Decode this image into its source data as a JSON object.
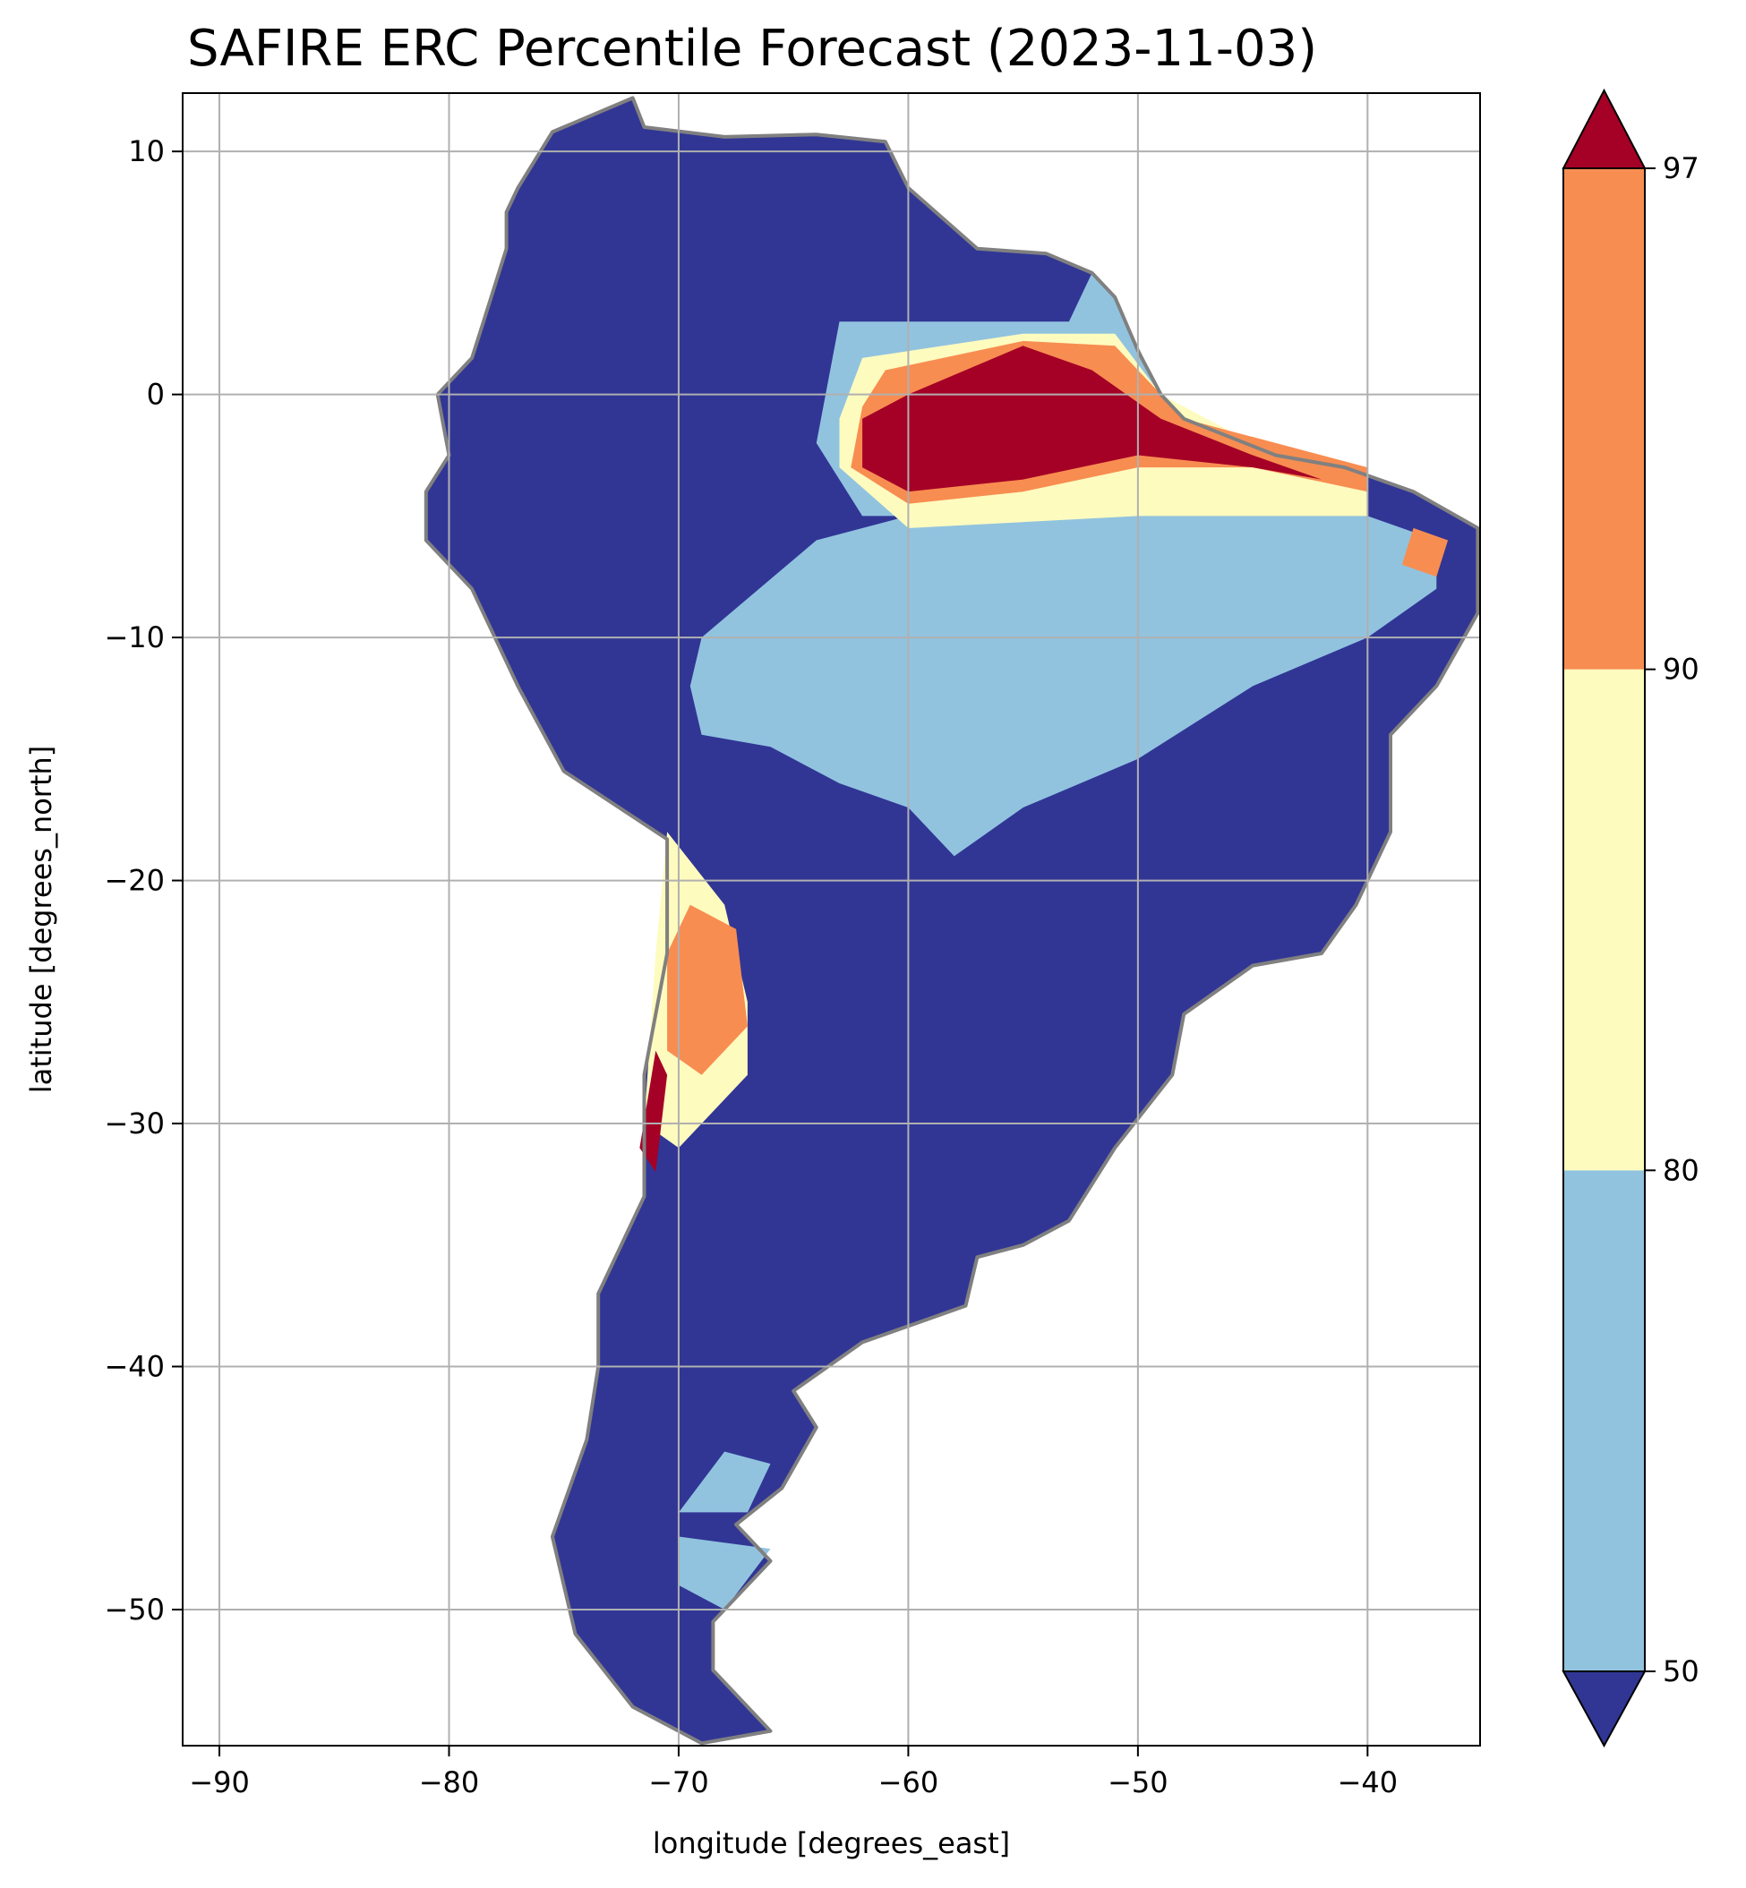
{
  "chart_data": {
    "type": "heatmap",
    "title": "SAFIRE ERC Percentile Forecast (2023-11-03)",
    "xlabel": "longitude [degrees_east]",
    "ylabel": "latitude [degrees_north]",
    "xlim": [
      -91.6,
      -35.1
    ],
    "ylim": [
      -55.6,
      12.4
    ],
    "xticks": [
      -90,
      -80,
      -70,
      -60,
      -50,
      -40
    ],
    "xtick_labels": [
      "−90",
      "−80",
      "−70",
      "−60",
      "−50",
      "−40"
    ],
    "yticks": [
      10,
      0,
      -10,
      -20,
      -30,
      -40,
      -50
    ],
    "ytick_labels": [
      "10",
      "0",
      "−10",
      "−20",
      "−30",
      "−40",
      "−50"
    ],
    "grid": true,
    "coastline_color": "#808080",
    "colorbar": {
      "position": "right",
      "extend": "both",
      "boundaries": [
        50,
        80,
        90,
        97
      ],
      "tick_labels": [
        "50",
        "80",
        "90",
        "97"
      ],
      "colors": {
        "below_50": "#313695",
        "50-80": "#91c3df",
        "80-90": "#fefbbf",
        "90-97": "#f88d51",
        "above_97": "#a50026"
      }
    },
    "land_outline": [
      [
        -77,
        8.5
      ],
      [
        -75.5,
        10.8
      ],
      [
        -72,
        12.2
      ],
      [
        -71.5,
        11
      ],
      [
        -68,
        10.6
      ],
      [
        -64,
        10.7
      ],
      [
        -61,
        10.4
      ],
      [
        -60,
        8.5
      ],
      [
        -57,
        6
      ],
      [
        -54,
        5.8
      ],
      [
        -52,
        5
      ],
      [
        -51,
        4
      ],
      [
        -50,
        1.8
      ],
      [
        -49,
        0
      ],
      [
        -48,
        -1
      ],
      [
        -44,
        -2.5
      ],
      [
        -41,
        -3
      ],
      [
        -38,
        -4
      ],
      [
        -35.2,
        -5.5
      ],
      [
        -35.2,
        -9
      ],
      [
        -37,
        -12
      ],
      [
        -39,
        -14
      ],
      [
        -39,
        -18
      ],
      [
        -40.5,
        -21
      ],
      [
        -42,
        -23
      ],
      [
        -45,
        -23.5
      ],
      [
        -48,
        -25.5
      ],
      [
        -48.5,
        -28
      ],
      [
        -51,
        -31
      ],
      [
        -53,
        -34
      ],
      [
        -55,
        -35
      ],
      [
        -57,
        -35.5
      ],
      [
        -57.5,
        -37.5
      ],
      [
        -62,
        -39
      ],
      [
        -65,
        -41
      ],
      [
        -64,
        -42.5
      ],
      [
        -65.5,
        -45
      ],
      [
        -67.5,
        -46.5
      ],
      [
        -66,
        -48
      ],
      [
        -68.5,
        -50.5
      ],
      [
        -68.5,
        -52.5
      ],
      [
        -66,
        -55
      ],
      [
        -69,
        -55.5
      ],
      [
        -72,
        -54
      ],
      [
        -74.5,
        -51
      ],
      [
        -75.5,
        -47
      ],
      [
        -74,
        -43
      ],
      [
        -73.5,
        -40
      ],
      [
        -73.5,
        -37
      ],
      [
        -71.5,
        -33
      ],
      [
        -71.5,
        -28
      ],
      [
        -70.5,
        -23
      ],
      [
        -70.5,
        -18.3
      ],
      [
        -75,
        -15.5
      ],
      [
        -77,
        -12
      ],
      [
        -79,
        -8
      ],
      [
        -81,
        -6
      ],
      [
        -81,
        -4
      ],
      [
        -80,
        -2.5
      ],
      [
        -80.5,
        0
      ],
      [
        -79,
        1.5
      ],
      [
        -78.5,
        3
      ],
      [
        -77.5,
        6
      ],
      [
        -77.5,
        7.5
      ]
    ],
    "regions": [
      {
        "category": "50-80",
        "polygon": [
          [
            -69,
            -10
          ],
          [
            -64,
            -6
          ],
          [
            -60,
            -5
          ],
          [
            -55,
            -5
          ],
          [
            -50,
            -4.5
          ],
          [
            -44,
            -4
          ],
          [
            -40,
            -5
          ],
          [
            -37,
            -6
          ],
          [
            -37,
            -8
          ],
          [
            -40,
            -10
          ],
          [
            -45,
            -12
          ],
          [
            -50,
            -15
          ],
          [
            -55,
            -17
          ],
          [
            -58,
            -19
          ],
          [
            -60,
            -17
          ],
          [
            -63,
            -16
          ],
          [
            -66,
            -14.5
          ],
          [
            -69,
            -14
          ],
          [
            -69.5,
            -12
          ]
        ]
      },
      {
        "category": "50-80",
        "polygon": [
          [
            -64,
            -2
          ],
          [
            -63,
            3
          ],
          [
            -58,
            3
          ],
          [
            -53,
            3
          ],
          [
            -52,
            5
          ],
          [
            -51,
            4
          ],
          [
            -49,
            0
          ],
          [
            -48,
            -3
          ],
          [
            -55,
            -5
          ],
          [
            -62,
            -5
          ]
        ]
      },
      {
        "category": "80-90",
        "polygon": [
          [
            -63,
            -1
          ],
          [
            -62,
            1.5
          ],
          [
            -55,
            2.5
          ],
          [
            -51,
            2.5
          ],
          [
            -49,
            0
          ],
          [
            -45,
            -2
          ],
          [
            -40,
            -3.5
          ],
          [
            -40,
            -5
          ],
          [
            -50,
            -5
          ],
          [
            -60,
            -5.5
          ],
          [
            -63,
            -3
          ]
        ]
      },
      {
        "category": "90-97",
        "polygon": [
          [
            -62,
            -0.5
          ],
          [
            -61,
            1
          ],
          [
            -55,
            2.2
          ],
          [
            -51,
            2
          ],
          [
            -48,
            -1
          ],
          [
            -44,
            -2
          ],
          [
            -40,
            -3
          ],
          [
            -40,
            -4
          ],
          [
            -45,
            -3
          ],
          [
            -50,
            -3
          ],
          [
            -55,
            -4
          ],
          [
            -60,
            -4.5
          ],
          [
            -62.5,
            -3
          ]
        ]
      },
      {
        "category": "above_97",
        "polygon": [
          [
            -62,
            -1
          ],
          [
            -60,
            0
          ],
          [
            -55,
            2
          ],
          [
            -52,
            1
          ],
          [
            -49,
            -1
          ],
          [
            -45,
            -2.5
          ],
          [
            -42,
            -3.5
          ],
          [
            -45,
            -3
          ],
          [
            -50,
            -2.5
          ],
          [
            -55,
            -3.5
          ],
          [
            -60,
            -4
          ],
          [
            -62,
            -3
          ]
        ]
      },
      {
        "category": "90-97",
        "polygon": [
          [
            -38,
            -5.5
          ],
          [
            -36.5,
            -6
          ],
          [
            -37,
            -7.5
          ],
          [
            -38.5,
            -7
          ]
        ]
      },
      {
        "category": "80-90",
        "polygon": [
          [
            -70.5,
            -18
          ],
          [
            -68,
            -21
          ],
          [
            -67,
            -25
          ],
          [
            -67,
            -28
          ],
          [
            -70,
            -31
          ],
          [
            -71.5,
            -30
          ],
          [
            -71,
            -23
          ]
        ]
      },
      {
        "category": "90-97",
        "polygon": [
          [
            -69.5,
            -21
          ],
          [
            -67.5,
            -22
          ],
          [
            -67,
            -26
          ],
          [
            -69,
            -28
          ],
          [
            -70.5,
            -27
          ],
          [
            -70.5,
            -23
          ]
        ]
      },
      {
        "category": "above_97",
        "polygon": [
          [
            -71,
            -27
          ],
          [
            -70.5,
            -28
          ],
          [
            -71,
            -32
          ],
          [
            -71.7,
            -31
          ]
        ]
      },
      {
        "category": "50-80",
        "polygon": [
          [
            -68,
            -43.5
          ],
          [
            -66,
            -44
          ],
          [
            -67,
            -46
          ],
          [
            -70,
            -46
          ]
        ]
      },
      {
        "category": "50-80",
        "polygon": [
          [
            -70,
            -47
          ],
          [
            -66,
            -47.5
          ],
          [
            -68,
            -50
          ],
          [
            -70,
            -49
          ]
        ]
      }
    ]
  }
}
